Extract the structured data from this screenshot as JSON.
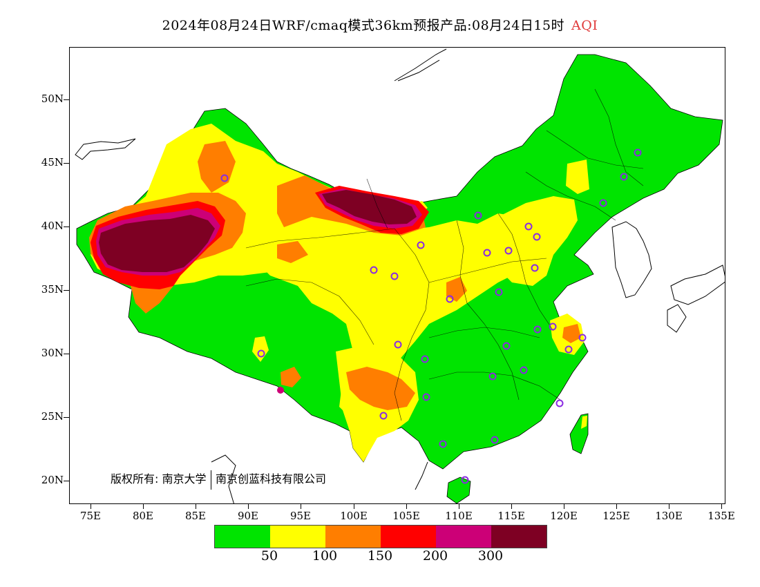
{
  "title": {
    "main": "2024年08月24日WRF/cmaq模式36km预报产品:08月24日15时",
    "variable": "AQI"
  },
  "axes": {
    "lat_labels": [
      "50N",
      "45N",
      "40N",
      "35N",
      "30N",
      "25N",
      "20N"
    ],
    "lon_labels": [
      "75E",
      "80E",
      "85E",
      "90E",
      "95E",
      "100E",
      "105E",
      "110E",
      "115E",
      "120E",
      "125E",
      "130E",
      "135E"
    ]
  },
  "copyright": {
    "prefix": "版权所有:",
    "org1": "南京大学",
    "org2": "南京创蓝科技有限公司"
  },
  "legend": {
    "colors": [
      "#00e400",
      "#ffff00",
      "#ff7e00",
      "#ff0000",
      "#cc0077",
      "#7e0023"
    ],
    "labels": [
      "50",
      "100",
      "150",
      "200",
      "300"
    ]
  }
}
